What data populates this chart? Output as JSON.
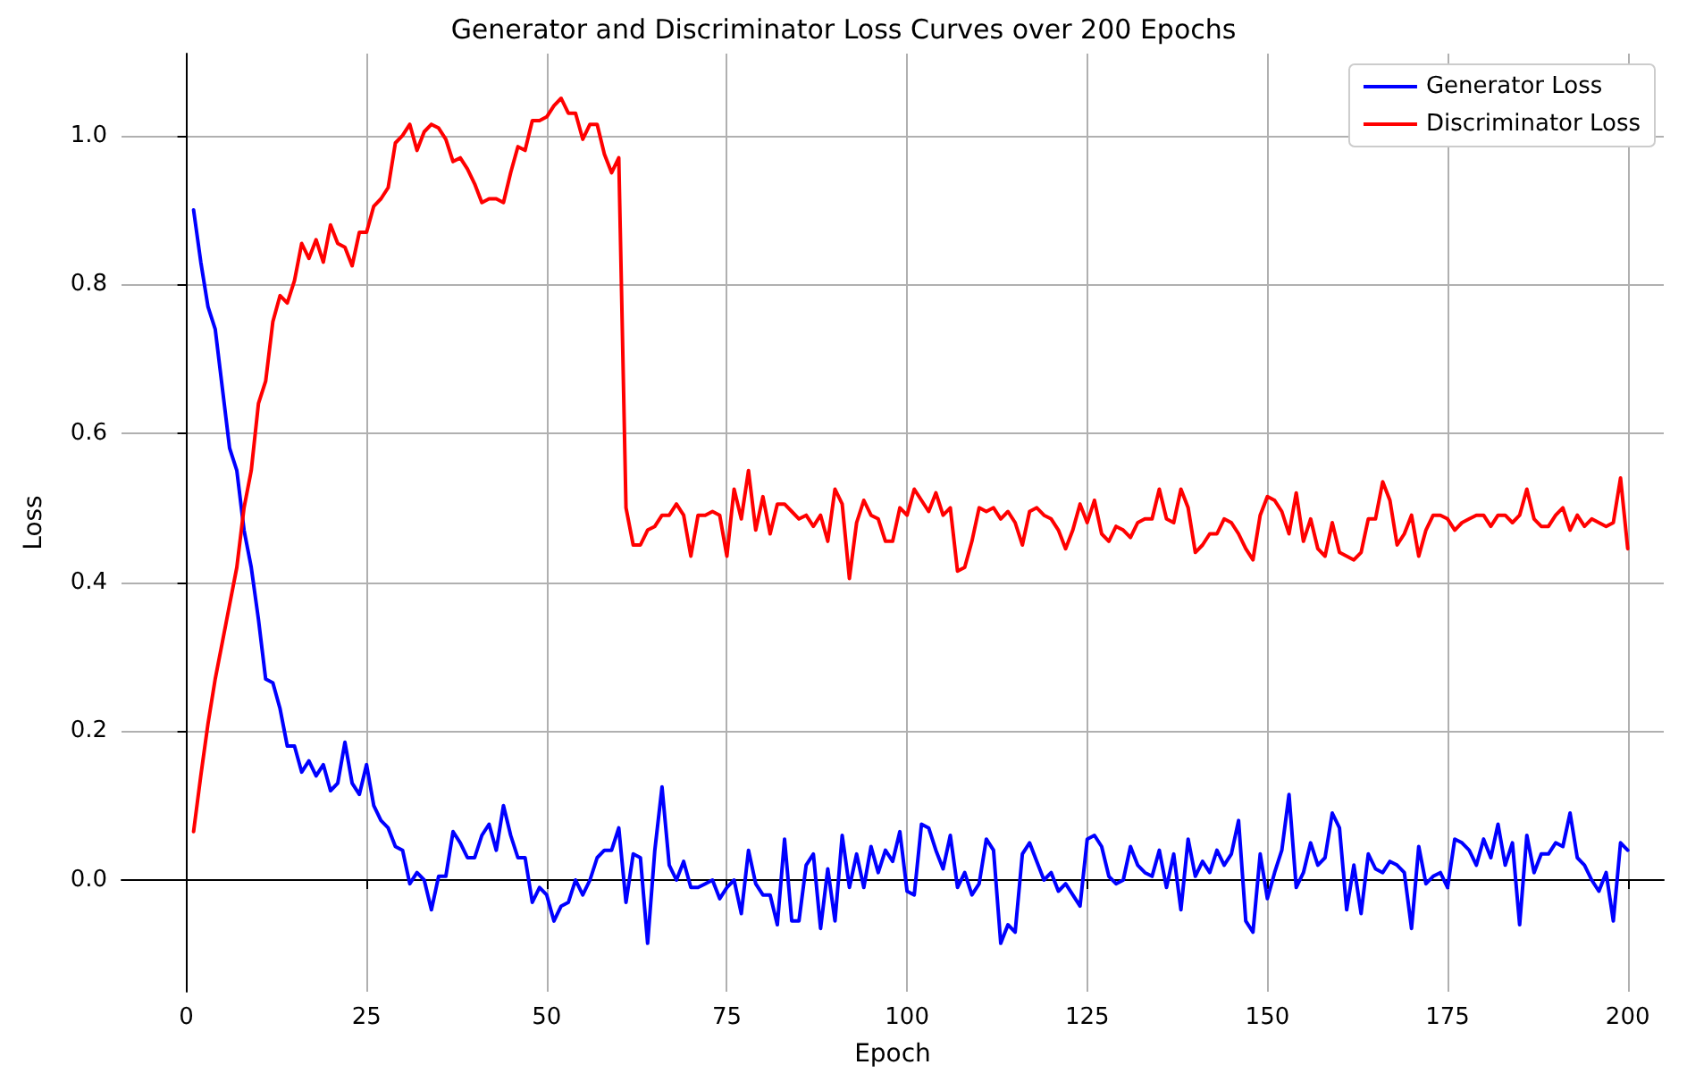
{
  "chart_data": {
    "type": "line",
    "title": "Generator and Discriminator Loss Curves over 200 Epochs",
    "xlabel": "Epoch",
    "ylabel": "Loss",
    "x": [
      1,
      2,
      3,
      4,
      5,
      6,
      7,
      8,
      9,
      10,
      11,
      12,
      13,
      14,
      15,
      16,
      17,
      18,
      19,
      20,
      21,
      22,
      23,
      24,
      25,
      26,
      27,
      28,
      29,
      30,
      31,
      32,
      33,
      34,
      35,
      36,
      37,
      38,
      39,
      40,
      41,
      42,
      43,
      44,
      45,
      46,
      47,
      48,
      49,
      50,
      51,
      52,
      53,
      54,
      55,
      56,
      57,
      58,
      59,
      60,
      61,
      62,
      63,
      64,
      65,
      66,
      67,
      68,
      69,
      70,
      71,
      72,
      73,
      74,
      75,
      76,
      77,
      78,
      79,
      80,
      81,
      82,
      83,
      84,
      85,
      86,
      87,
      88,
      89,
      90,
      91,
      92,
      93,
      94,
      95,
      96,
      97,
      98,
      99,
      100,
      101,
      102,
      103,
      104,
      105,
      106,
      107,
      108,
      109,
      110,
      111,
      112,
      113,
      114,
      115,
      116,
      117,
      118,
      119,
      120,
      121,
      122,
      123,
      124,
      125,
      126,
      127,
      128,
      129,
      130,
      131,
      132,
      133,
      134,
      135,
      136,
      137,
      138,
      139,
      140,
      141,
      142,
      143,
      144,
      145,
      146,
      147,
      148,
      149,
      150,
      151,
      152,
      153,
      154,
      155,
      156,
      157,
      158,
      159,
      160,
      161,
      162,
      163,
      164,
      165,
      166,
      167,
      168,
      169,
      170,
      171,
      172,
      173,
      174,
      175,
      176,
      177,
      178,
      179,
      180,
      181,
      182,
      183,
      184,
      185,
      186,
      187,
      188,
      189,
      190,
      191,
      192,
      193,
      194,
      195,
      196,
      197,
      198,
      199,
      200
    ],
    "series": [
      {
        "name": "Generator Loss",
        "color": "#0000ff",
        "values": [
          0.9,
          0.83,
          0.77,
          0.74,
          0.66,
          0.58,
          0.55,
          0.47,
          0.42,
          0.35,
          0.27,
          0.265,
          0.23,
          0.18,
          0.18,
          0.145,
          0.16,
          0.14,
          0.155,
          0.12,
          0.13,
          0.185,
          0.13,
          0.115,
          0.155,
          0.1,
          0.08,
          0.07,
          0.045,
          0.04,
          -0.005,
          0.01,
          0.0,
          -0.04,
          0.005,
          0.005,
          0.065,
          0.05,
          0.03,
          0.03,
          0.06,
          0.075,
          0.04,
          0.1,
          0.06,
          0.03,
          0.03,
          -0.03,
          -0.01,
          -0.02,
          -0.055,
          -0.035,
          -0.03,
          0.0,
          -0.02,
          0.0,
          0.03,
          0.04,
          0.04,
          0.07,
          -0.03,
          0.035,
          0.03,
          -0.085,
          0.04,
          0.125,
          0.02,
          0.0,
          0.025,
          -0.01,
          -0.01,
          -0.005,
          0.0,
          -0.025,
          -0.01,
          0.0,
          -0.045,
          0.04,
          -0.005,
          -0.02,
          -0.02,
          -0.06,
          0.055,
          -0.055,
          -0.055,
          0.02,
          0.035,
          -0.065,
          0.015,
          -0.055,
          0.06,
          -0.01,
          0.035,
          -0.01,
          0.045,
          0.01,
          0.04,
          0.025,
          0.065,
          -0.015,
          -0.02,
          0.075,
          0.07,
          0.04,
          0.015,
          0.06,
          -0.01,
          0.01,
          -0.02,
          -0.005,
          0.055,
          0.04,
          -0.085,
          -0.06,
          -0.07,
          0.035,
          0.05,
          0.025,
          0.0,
          0.01,
          -0.015,
          -0.005,
          -0.02,
          -0.035,
          0.055,
          0.06,
          0.045,
          0.005,
          -0.005,
          0.0,
          0.045,
          0.02,
          0.01,
          0.005,
          0.04,
          -0.01,
          0.035,
          -0.04,
          0.055,
          0.005,
          0.025,
          0.01,
          0.04,
          0.02,
          0.035,
          0.08,
          -0.055,
          -0.07,
          0.035,
          -0.025,
          0.01,
          0.04,
          0.115,
          -0.01,
          0.01,
          0.05,
          0.02,
          0.03,
          0.09,
          0.07,
          -0.04,
          0.02,
          -0.045,
          0.035,
          0.015,
          0.01,
          0.025,
          0.02,
          0.01,
          -0.065,
          0.045,
          -0.005,
          0.005,
          0.01,
          -0.01,
          0.055,
          0.05,
          0.04,
          0.02,
          0.055,
          0.03,
          0.075,
          0.02,
          0.05,
          -0.06,
          0.06,
          0.01,
          0.035,
          0.035,
          0.05,
          0.045,
          0.09,
          0.03,
          0.02,
          0.0,
          -0.015,
          0.01,
          -0.055,
          0.05,
          0.04
        ]
      },
      {
        "name": "Discriminator Loss",
        "color": "#ff0000",
        "values": [
          0.065,
          0.14,
          0.21,
          0.27,
          0.32,
          0.37,
          0.42,
          0.5,
          0.55,
          0.64,
          0.67,
          0.75,
          0.785,
          0.775,
          0.805,
          0.855,
          0.835,
          0.86,
          0.83,
          0.88,
          0.855,
          0.85,
          0.825,
          0.87,
          0.87,
          0.905,
          0.915,
          0.93,
          0.99,
          1.0,
          1.015,
          0.98,
          1.005,
          1.015,
          1.01,
          0.995,
          0.965,
          0.97,
          0.955,
          0.935,
          0.91,
          0.915,
          0.915,
          0.91,
          0.95,
          0.985,
          0.98,
          1.02,
          1.02,
          1.025,
          1.04,
          1.05,
          1.03,
          1.03,
          0.995,
          1.015,
          1.015,
          0.975,
          0.95,
          0.97,
          0.5,
          0.45,
          0.45,
          0.47,
          0.475,
          0.49,
          0.49,
          0.505,
          0.49,
          0.435,
          0.49,
          0.49,
          0.495,
          0.49,
          0.435,
          0.525,
          0.485,
          0.55,
          0.47,
          0.515,
          0.465,
          0.505,
          0.505,
          0.495,
          0.485,
          0.49,
          0.475,
          0.49,
          0.455,
          0.525,
          0.505,
          0.405,
          0.48,
          0.51,
          0.49,
          0.485,
          0.455,
          0.455,
          0.5,
          0.49,
          0.525,
          0.51,
          0.495,
          0.52,
          0.49,
          0.5,
          0.415,
          0.42,
          0.455,
          0.5,
          0.495,
          0.5,
          0.485,
          0.495,
          0.48,
          0.45,
          0.495,
          0.5,
          0.49,
          0.485,
          0.47,
          0.445,
          0.47,
          0.505,
          0.48,
          0.51,
          0.465,
          0.455,
          0.475,
          0.47,
          0.46,
          0.48,
          0.485,
          0.485,
          0.525,
          0.485,
          0.48,
          0.525,
          0.5,
          0.44,
          0.45,
          0.465,
          0.465,
          0.485,
          0.48,
          0.465,
          0.445,
          0.43,
          0.49,
          0.515,
          0.51,
          0.495,
          0.465,
          0.52,
          0.455,
          0.485,
          0.445,
          0.435,
          0.48,
          0.44,
          0.435,
          0.43,
          0.44,
          0.485,
          0.485,
          0.535,
          0.51,
          0.45,
          0.465,
          0.49,
          0.435,
          0.47,
          0.49,
          0.49,
          0.485,
          0.47,
          0.48,
          0.485,
          0.49,
          0.49,
          0.475,
          0.49,
          0.49,
          0.48,
          0.49,
          0.525,
          0.485,
          0.475,
          0.475,
          0.49,
          0.5,
          0.47,
          0.49,
          0.475,
          0.485,
          0.48,
          0.475,
          0.48,
          0.54,
          0.445
        ]
      }
    ],
    "xlim": [
      -9,
      205
    ],
    "xticks": [
      0,
      25,
      50,
      75,
      100,
      125,
      150,
      175,
      200
    ],
    "ylim": [
      -0.15,
      1.11
    ],
    "yticks": [
      {
        "value": 0,
        "label": "0.0"
      },
      {
        "value": 0.2,
        "label": "0.2"
      },
      {
        "value": 0.4,
        "label": "0.4"
      },
      {
        "value": 0.6,
        "label": "0.6"
      },
      {
        "value": 0.8,
        "label": "0.8"
      },
      {
        "value": 1.0,
        "label": "1.0"
      }
    ],
    "grid": true,
    "legend": "top right",
    "marker": "none",
    "line_style": "solid"
  }
}
